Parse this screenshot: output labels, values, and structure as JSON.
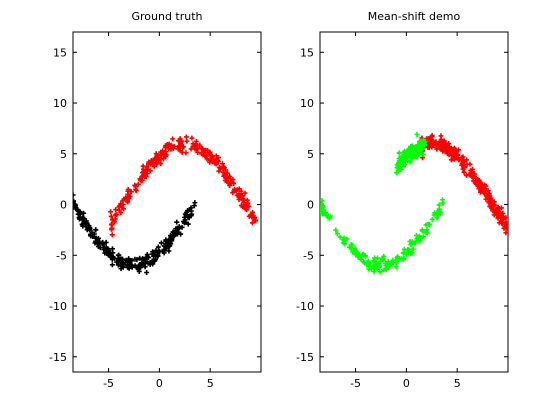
{
  "figure": {
    "background": "#ffffff"
  },
  "chart_data": [
    {
      "type": "scatter",
      "title": "Ground truth",
      "xlabel": "",
      "ylabel": "",
      "xlim": [
        -8.5,
        10
      ],
      "ylim": [
        -16.5,
        17
      ],
      "xticks": [
        -5,
        0,
        5
      ],
      "yticks": [
        -15,
        -10,
        -5,
        0,
        5,
        10,
        15
      ],
      "grid": false,
      "marker": "plus",
      "series": [
        {
          "color": "#ff0000",
          "curve": "upper",
          "x_range": [
            -4.8,
            9.5
          ]
        },
        {
          "color": "#000000",
          "curve": "lower",
          "x_range": [
            -8.5,
            3.5
          ]
        }
      ]
    },
    {
      "type": "scatter",
      "title": "Mean-shift demo",
      "xlabel": "",
      "ylabel": "",
      "xlim": [
        -8.5,
        10
      ],
      "ylim": [
        -16.5,
        17
      ],
      "xticks": [
        -5,
        0,
        5
      ],
      "yticks": [
        -15,
        -10,
        -5,
        0,
        5,
        10,
        15
      ],
      "grid": false,
      "marker": "plus",
      "series": [
        {
          "color": "#ff0000",
          "curve": "upper",
          "x_range": [
            1.5,
            10
          ]
        },
        {
          "color": "#00ff00",
          "curve": "mixed",
          "x_range": [
            -8.5,
            3.7
          ]
        }
      ]
    }
  ]
}
